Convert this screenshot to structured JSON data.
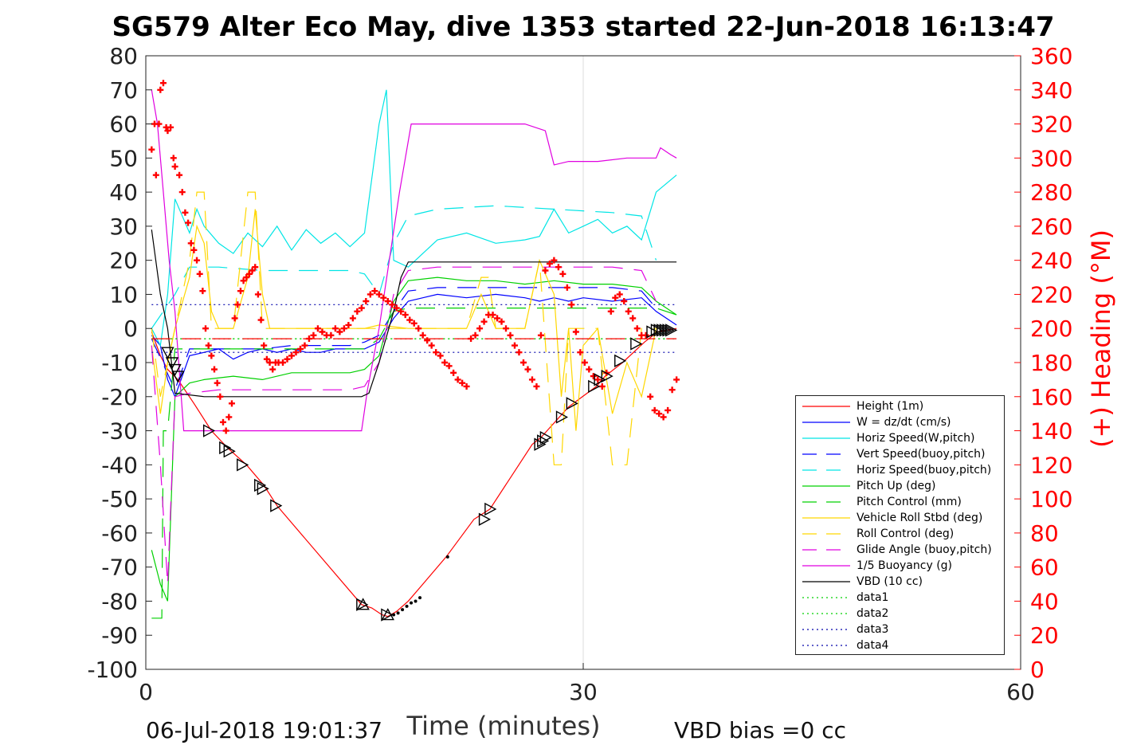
{
  "chart_data": {
    "type": "line",
    "title": "SG579 Alter Eco May, dive 1353 started 22-Jun-2018 16:13:47",
    "xlabel": "Time (minutes)",
    "ylabel_right": "(+) Heading (°M)",
    "xlim": [
      0,
      60
    ],
    "ylim": [
      -100,
      80
    ],
    "ylim_right": [
      0,
      360
    ],
    "xticks": [
      "0",
      "30",
      "60"
    ],
    "yticks": [
      "80",
      "70",
      "60",
      "50",
      "40",
      "30",
      "20",
      "10",
      "0",
      "-10",
      "-20",
      "-30",
      "-40",
      "-50",
      "-60",
      "-70",
      "-80",
      "-90",
      "-100"
    ],
    "yticks_right": [
      "360",
      "340",
      "320",
      "300",
      "280",
      "260",
      "240",
      "220",
      "200",
      "180",
      "160",
      "140",
      "120",
      "100",
      "80",
      "60",
      "40",
      "20",
      "0"
    ],
    "grid": "x only at 30",
    "legend_position": "lower-right",
    "footer_left": "06-Jul-2018 19:01:37",
    "footer_right": "VBD bias =0 cc",
    "series": [
      {
        "name": "Height (1m)",
        "color": "#ff0000",
        "style": "solid",
        "x": [
          0.4,
          1.0,
          1.5,
          2.2,
          3.3,
          4.5,
          5.6,
          6.9,
          8.1,
          9.0,
          14.8,
          15.5,
          16.2,
          16.6,
          17.2,
          18.0,
          19.0,
          20.6,
          22.5,
          23.6,
          26.5,
          27.1,
          29.0,
          30.9,
          31.5,
          32.7,
          34.2,
          35.1,
          36.4
        ],
        "y": [
          -1,
          -8,
          -12,
          -15,
          -22,
          -30,
          -35,
          -40,
          -46,
          -52,
          -81,
          -82,
          -84,
          -84.5,
          -83,
          -80,
          -75,
          -67,
          -56,
          -53,
          -34,
          -32,
          -23,
          -17,
          -14,
          -10,
          -4,
          -1,
          0
        ]
      },
      {
        "name": "W = dz/dt (cm/s)",
        "color": "#0000ff",
        "style": "solid",
        "x": [
          0.4,
          1.0,
          1.5,
          2.0,
          3.0,
          4.0,
          5.0,
          6.0,
          7.0,
          8.0,
          9.0,
          10.0,
          11.0,
          12.0,
          13.0,
          14.0,
          15.0,
          16.0,
          17.0,
          18.0,
          19.0,
          20.0,
          22.0,
          24.0,
          26.0,
          27.0,
          28.0,
          29.0,
          30.0,
          32.0,
          34.0,
          35.0,
          36.4
        ],
        "y": [
          -2,
          -5,
          -15,
          -20,
          -8,
          -7,
          -6,
          -9,
          -7,
          -6,
          -7,
          -6,
          -7,
          -7,
          -6,
          -6,
          -6,
          -4,
          3,
          8,
          9,
          10,
          9,
          10,
          9,
          8,
          9,
          8,
          9,
          8,
          9,
          5,
          1
        ]
      },
      {
        "name": "Horiz Speed(W,pitch)",
        "color": "#00e5e5",
        "style": "solid",
        "x": [
          0.4,
          1.0,
          1.5,
          2.0,
          2.5,
          3.0,
          3.5,
          4.0,
          5.0,
          6.0,
          7.0,
          8.0,
          9.0,
          10.0,
          11.0,
          12.0,
          13.0,
          14.0,
          15.0,
          16.0,
          16.5,
          17.0,
          18.0,
          19.0,
          20.0,
          22.0,
          24.0,
          26.0,
          27.0,
          28.0,
          29.0,
          30.0,
          31.0,
          32.0,
          33.0,
          34.0,
          35.0,
          36.4
        ],
        "y": [
          0,
          -5,
          10,
          38,
          33,
          28,
          35,
          30,
          25,
          22,
          28,
          24,
          30,
          23,
          29,
          25,
          28,
          24,
          28,
          60,
          70,
          20,
          18,
          22,
          26,
          28,
          25,
          26,
          27,
          35,
          28,
          30,
          32,
          28,
          30,
          26,
          40,
          45
        ]
      },
      {
        "name": "Vert Speed(buoy,pitch)",
        "color": "#0000ff",
        "style": "dashed",
        "x": [
          0.4,
          2.0,
          3.0,
          5.0,
          8.0,
          10.0,
          12.0,
          14.0,
          15.0,
          16.0,
          17.0,
          18.0,
          20.0,
          24.0,
          28.0,
          32.0,
          34.0,
          35.0
        ],
        "y": [
          -3,
          -18,
          -6,
          -6,
          -6,
          -5,
          -5,
          -5,
          -4,
          -2,
          5,
          11,
          12,
          12,
          12,
          12,
          11,
          6
        ]
      },
      {
        "name": "Horiz Speed(buoy,pitch)",
        "color": "#00e5e5",
        "style": "dashed",
        "x": [
          0.4,
          2.0,
          3.0,
          5.0,
          8.0,
          10.0,
          12.0,
          14.0,
          15.0,
          16.0,
          17.0,
          18.0,
          20.0,
          24.0,
          28.0,
          32.0,
          34.0,
          35.0
        ],
        "y": [
          0,
          10,
          18,
          18,
          17,
          17,
          17,
          17,
          16,
          10,
          25,
          33,
          35,
          36,
          35,
          34,
          33,
          20
        ]
      },
      {
        "name": "Pitch Up (deg)",
        "color": "#00d000",
        "style": "solid",
        "x": [
          0.4,
          1.0,
          1.5,
          2.0,
          3.0,
          4.0,
          6.0,
          8.0,
          10.0,
          12.0,
          14.0,
          15.0,
          16.0,
          17.0,
          18.0,
          20.0,
          22.0,
          24.0,
          26.0,
          28.0,
          30.0,
          32.0,
          34.0,
          35.0,
          36.4
        ],
        "y": [
          -65,
          -75,
          -80,
          -20,
          -16,
          -15,
          -14,
          -15,
          -13,
          -13,
          -13,
          -12,
          -8,
          8,
          14,
          15,
          14,
          14,
          13,
          14,
          13,
          13,
          12,
          8,
          4
        ]
      },
      {
        "name": "Pitch Control (mm)",
        "color": "#00d000",
        "style": "dashed",
        "x": [
          0.4,
          1.1,
          1.2,
          1.5,
          2.0,
          3.0,
          8.0,
          14.0,
          15.0,
          16.0,
          17.0,
          18.0,
          25.0,
          30.0,
          35.0,
          36.4
        ],
        "y": [
          -85,
          -85,
          -30,
          -30,
          -6,
          -6,
          -6,
          -6,
          -6,
          -3,
          5,
          6,
          6,
          6,
          6,
          4
        ]
      },
      {
        "name": "Vehicle Roll Stbd (deg)",
        "color": "#ffd700",
        "style": "solid",
        "x": [
          0.4,
          1.0,
          1.5,
          2.0,
          3.0,
          3.5,
          4.0,
          4.5,
          5.0,
          6.0,
          7.0,
          7.5,
          8.0,
          8.5,
          9.0,
          10.0,
          12.0,
          14.0,
          15.0,
          16.0,
          18.0,
          20.0,
          22.0,
          23.0,
          24.0,
          26.0,
          27.0,
          28.0,
          28.5,
          29.0,
          29.5,
          30.0,
          31.0,
          32.0,
          33.0,
          34.0,
          35.0
        ],
        "y": [
          -5,
          -25,
          -10,
          0,
          15,
          30,
          25,
          5,
          0,
          0,
          15,
          35,
          10,
          0,
          0,
          0,
          0,
          0,
          0,
          1,
          0,
          0,
          0,
          10,
          0,
          0,
          20,
          10,
          -20,
          0,
          -30,
          -5,
          0,
          -25,
          -10,
          -20,
          0
        ]
      },
      {
        "name": "Roll Control (deg)",
        "color": "#ffd700",
        "style": "dashed",
        "x": [
          0.4,
          1.0,
          1.5,
          2.0,
          3.0,
          3.5,
          4.0,
          4.5,
          5.0,
          6.0,
          7.0,
          7.5,
          8.0,
          8.5,
          9.0,
          10.0,
          14.0,
          15.0,
          16.0,
          18.0,
          22.0,
          23.0,
          23.5,
          24.0,
          26.0,
          27.0,
          28.0,
          28.5,
          29.0,
          30.0,
          31.0,
          32.0,
          33.0,
          34.0,
          35.0
        ],
        "y": [
          0,
          -20,
          -10,
          0,
          20,
          40,
          40,
          0,
          0,
          0,
          40,
          40,
          0,
          0,
          0,
          0,
          0,
          0,
          0,
          0,
          0,
          15,
          15,
          0,
          0,
          20,
          -40,
          -40,
          0,
          0,
          0,
          -40,
          -40,
          0,
          0
        ]
      },
      {
        "name": "Glide Angle (buoy,pitch)",
        "color": "#e000e0",
        "style": "dashed",
        "x": [
          0.4,
          1.0,
          1.5,
          2.0,
          3.0,
          5.0,
          8.0,
          10.0,
          12.0,
          14.0,
          15.0,
          16.0,
          17.0,
          18.0,
          20.0,
          24.0,
          28.0,
          32.0,
          34.0,
          35.0
        ],
        "y": [
          -5,
          -40,
          -75,
          -20,
          -19,
          -18,
          -18,
          -18,
          -18,
          -18,
          -17,
          -10,
          10,
          17,
          18,
          18,
          18,
          18,
          17,
          8
        ]
      },
      {
        "name": "1/5 Buoyancy (g)",
        "color": "#e000e0",
        "style": "solid",
        "x": [
          0.4,
          0.8,
          1.2,
          1.6,
          2.0,
          2.6,
          4.0,
          4.2,
          14.8,
          15.2,
          16.0,
          17.4,
          18.2,
          20.0,
          22.0,
          24.0,
          26.0,
          27.4,
          28.0,
          29.0,
          31.0,
          33.0,
          35.0,
          35.3,
          36.0,
          36.4
        ],
        "y": [
          70,
          60,
          40,
          20,
          5,
          -30,
          -30,
          -30,
          -30,
          -18,
          0,
          40,
          60,
          60,
          60,
          60,
          60,
          58,
          48,
          49,
          49,
          50,
          50,
          53,
          51,
          50
        ]
      },
      {
        "name": "VBD (10 cc)",
        "color": "#000000",
        "style": "solid",
        "x": [
          0.4,
          1.0,
          1.5,
          2.0,
          4.0,
          14.8,
          15.3,
          16.0,
          17.0,
          17.5,
          18.0,
          36.4
        ],
        "y": [
          29,
          10,
          0,
          -19,
          -20,
          -20,
          -19,
          -10,
          5,
          15,
          19.5,
          19.5
        ]
      },
      {
        "name": "data1",
        "color": "#00d000",
        "style": "dotted",
        "x": [
          0.4,
          36.4
        ],
        "y": [
          -3,
          -3
        ]
      },
      {
        "name": "data2",
        "color": "#00d000",
        "style": "dotted",
        "x": [
          0.4,
          36.4
        ],
        "y": [
          -3,
          -3
        ]
      },
      {
        "name": "data3",
        "color": "#0000aa",
        "style": "dotted",
        "x": [
          0.4,
          36.4
        ],
        "y": [
          7,
          7
        ]
      },
      {
        "name": "data4",
        "color": "#0000aa",
        "style": "dotted",
        "x": [
          0.4,
          36.4
        ],
        "y": [
          -7,
          -7
        ]
      }
    ],
    "reference_lines": [
      {
        "color": "#ff0000",
        "style": "dashed",
        "x": [
          0.4,
          36.4
        ],
        "y": [
          -3,
          -3
        ]
      }
    ],
    "markers": {
      "down_triangles": {
        "x": [
          1.5,
          1.8,
          2.0,
          2.2
        ],
        "y": [
          -7,
          -10,
          -12,
          -14
        ]
      },
      "right_triangles": {
        "x": [
          4.3,
          5.4,
          5.7,
          6.6,
          7.8,
          8.0,
          8.9,
          14.8,
          16.5,
          23.2,
          23.6,
          27.0,
          27.2,
          27.4,
          28.5,
          29.2,
          30.7,
          31.1,
          31.6,
          32.5,
          33.6,
          34.7,
          35.0,
          35.2,
          35.4,
          35.6,
          35.8,
          36.0
        ],
        "y": [
          -30,
          -35,
          -36,
          -40,
          -46,
          -47,
          -52,
          -81,
          -84,
          -56,
          -53,
          -34,
          -33,
          -32,
          -26,
          -22,
          -17,
          -15,
          -14,
          -9.5,
          -4.5,
          -1,
          -0.5,
          -0.5,
          -0.5,
          -0.5,
          -0.5,
          -0.5
        ]
      },
      "up_triangles": {
        "x": [
          14.9,
          16.6
        ],
        "y": [
          -81,
          -84
        ]
      },
      "dots": {
        "x": [
          17.0,
          17.3,
          17.6,
          17.9,
          18.2,
          18.5,
          18.8,
          20.7
        ],
        "y": [
          -84,
          -83.5,
          -82.5,
          -81.5,
          -80.5,
          -80,
          -79,
          -67
        ]
      }
    },
    "heading": {
      "name": "(+) Heading (°M)",
      "color": "#ff0000",
      "x": [
        0.4,
        0.6,
        0.7,
        0.9,
        1.0,
        1.2,
        1.4,
        1.5,
        1.7,
        1.9,
        2.0,
        2.3,
        2.5,
        2.7,
        2.9,
        3.1,
        3.3,
        3.5,
        3.7,
        3.9,
        4.1,
        4.3,
        4.5,
        4.7,
        4.9,
        5.1,
        5.3,
        5.5,
        5.7,
        5.9,
        6.1,
        6.3,
        6.5,
        6.7,
        6.9,
        7.1,
        7.3,
        7.5,
        7.7,
        7.9,
        8.1,
        8.3,
        8.5,
        8.7,
        8.9,
        9.1,
        9.4,
        9.7,
        10.0,
        10.3,
        10.6,
        10.9,
        11.2,
        11.5,
        11.8,
        12.1,
        12.4,
        12.7,
        13.0,
        13.3,
        13.6,
        13.9,
        14.2,
        14.5,
        14.8,
        15.1,
        15.4,
        15.7,
        16.0,
        16.3,
        16.6,
        16.9,
        17.2,
        17.5,
        17.8,
        18.1,
        18.4,
        18.7,
        19.0,
        19.3,
        19.6,
        19.9,
        20.2,
        20.5,
        20.8,
        21.1,
        21.4,
        21.7,
        22.0,
        22.3,
        22.6,
        22.9,
        23.2,
        23.5,
        23.8,
        24.1,
        24.4,
        24.7,
        25.0,
        25.3,
        25.6,
        25.9,
        26.2,
        26.5,
        26.8,
        27.1,
        27.4,
        27.7,
        28.0,
        28.3,
        28.6,
        28.9,
        29.2,
        29.5,
        29.8,
        30.1,
        30.4,
        30.7,
        31.0,
        31.3,
        31.6,
        31.9,
        32.2,
        32.5,
        32.8,
        33.1,
        33.4,
        33.7,
        34.0,
        34.3,
        34.6,
        34.9,
        35.2,
        35.5,
        35.8,
        36.1,
        36.4
      ],
      "y": [
        305,
        320,
        290,
        320,
        340,
        344,
        318,
        316,
        318,
        300,
        295,
        290,
        280,
        268,
        262,
        250,
        246,
        240,
        232,
        222,
        200,
        190,
        184,
        176,
        168,
        160,
        145,
        140,
        148,
        156,
        206,
        214,
        222,
        228,
        230,
        232,
        234,
        236,
        220,
        205,
        190,
        182,
        180,
        176,
        180,
        180,
        180,
        182,
        184,
        186,
        188,
        190,
        194,
        196,
        200,
        198,
        196,
        196,
        200,
        198,
        200,
        202,
        206,
        210,
        212,
        216,
        220,
        222,
        220,
        218,
        216,
        214,
        212,
        210,
        208,
        205,
        203,
        200,
        196,
        193,
        190,
        186,
        184,
        180,
        178,
        174,
        170,
        168,
        166,
        194,
        196,
        200,
        204,
        208,
        208,
        206,
        204,
        200,
        196,
        190,
        186,
        180,
        176,
        170,
        166,
        196,
        234,
        238,
        240,
        236,
        232,
        224,
        214,
        198,
        186,
        180,
        176,
        172,
        170,
        166,
        174,
        210,
        218,
        220,
        216,
        210,
        206,
        200,
        196,
        196,
        160,
        152,
        150,
        148,
        152,
        164,
        170
      ]
    }
  }
}
